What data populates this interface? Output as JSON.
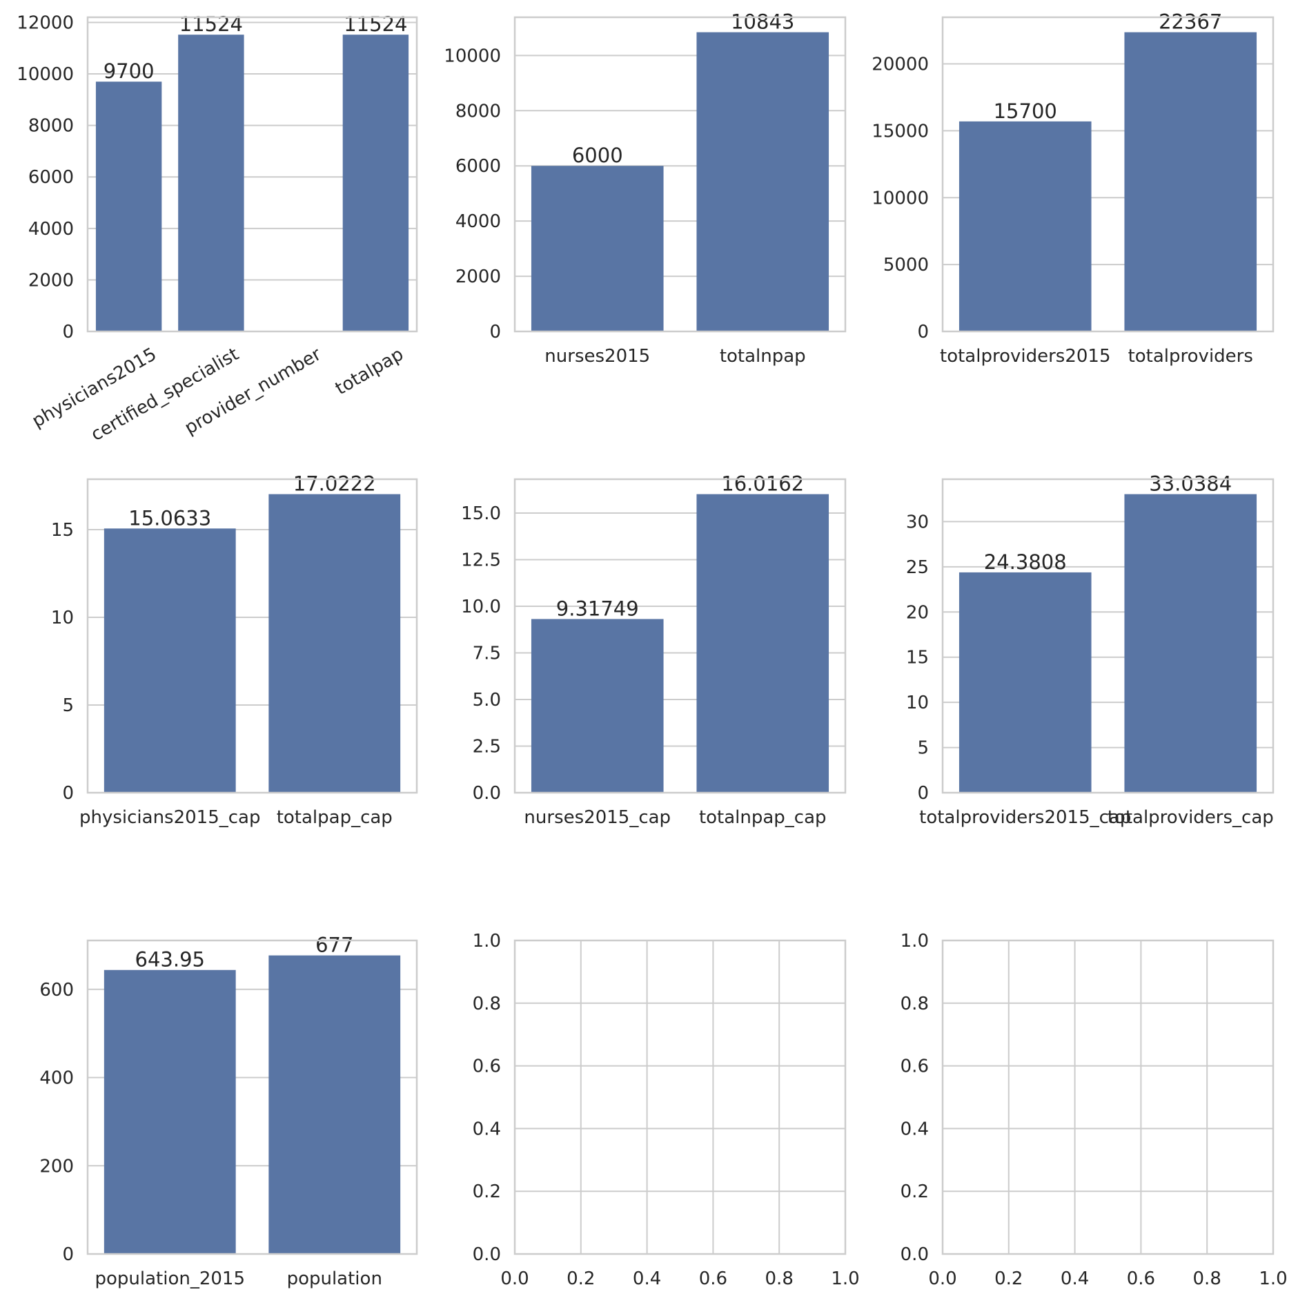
{
  "bar_color": "#5975a4",
  "grid_color": "#cccccc",
  "chart_data": [
    {
      "type": "bar",
      "categories": [
        "physicians2015",
        "certified_specialist",
        "provider_number",
        "totalpap"
      ],
      "values": [
        9700,
        11524,
        null,
        11524
      ],
      "bar_labels": [
        "9700",
        "11524",
        "",
        "11524"
      ],
      "ylim": [
        0,
        12200
      ],
      "yticks": [
        0,
        2000,
        4000,
        6000,
        8000,
        10000,
        12000
      ],
      "ytick_labels": [
        "0",
        "2000",
        "4000",
        "6000",
        "8000",
        "10000",
        "12000"
      ],
      "x_tick_rotation": 30,
      "grid": true
    },
    {
      "type": "bar",
      "categories": [
        "nurses2015",
        "totalnpap"
      ],
      "values": [
        6000,
        10843
      ],
      "bar_labels": [
        "6000",
        "10843"
      ],
      "ylim": [
        0,
        11385
      ],
      "yticks": [
        0,
        2000,
        4000,
        6000,
        8000,
        10000
      ],
      "ytick_labels": [
        "0",
        "2000",
        "4000",
        "6000",
        "8000",
        "10000"
      ],
      "grid": true
    },
    {
      "type": "bar",
      "categories": [
        "totalproviders2015",
        "totalproviders"
      ],
      "values": [
        15700,
        22367
      ],
      "bar_labels": [
        "15700",
        "22367"
      ],
      "ylim": [
        0,
        23485
      ],
      "yticks": [
        0,
        5000,
        10000,
        15000,
        20000
      ],
      "ytick_labels": [
        "0",
        "5000",
        "10000",
        "15000",
        "20000"
      ],
      "grid": true
    },
    {
      "type": "bar",
      "categories": [
        "physicians2015_cap",
        "totalpap_cap"
      ],
      "values": [
        15.0633,
        17.0222
      ],
      "bar_labels": [
        "15.0633",
        "17.0222"
      ],
      "ylim": [
        0,
        17.873
      ],
      "yticks": [
        0,
        5,
        10,
        15
      ],
      "ytick_labels": [
        "0",
        "5",
        "10",
        "15"
      ],
      "grid": true
    },
    {
      "type": "bar",
      "categories": [
        "nurses2015_cap",
        "totalnpap_cap"
      ],
      "values": [
        9.31749,
        16.0162
      ],
      "bar_labels": [
        "9.31749",
        "16.0162"
      ],
      "ylim": [
        0,
        16.817
      ],
      "yticks": [
        0,
        2.5,
        5,
        7.5,
        10,
        12.5,
        15
      ],
      "ytick_labels": [
        "0.0",
        "2.5",
        "5.0",
        "7.5",
        "10.0",
        "12.5",
        "15.0"
      ],
      "grid": true
    },
    {
      "type": "bar",
      "categories": [
        "totalproviders2015_cap",
        "totalproviders_cap"
      ],
      "values": [
        24.3808,
        33.0384
      ],
      "bar_labels": [
        "24.3808",
        "33.0384"
      ],
      "ylim": [
        0,
        34.69
      ],
      "yticks": [
        0,
        5,
        10,
        15,
        20,
        25,
        30
      ],
      "ytick_labels": [
        "0",
        "5",
        "10",
        "15",
        "20",
        "25",
        "30"
      ],
      "grid": true
    },
    {
      "type": "bar",
      "categories": [
        "population_2015",
        "population"
      ],
      "values": [
        643.95,
        677
      ],
      "bar_labels": [
        "643.95",
        "677"
      ],
      "ylim": [
        0,
        710.85
      ],
      "yticks": [
        0,
        200,
        400,
        600
      ],
      "ytick_labels": [
        "0",
        "200",
        "400",
        "600"
      ],
      "grid": true
    },
    {
      "type": "scatter",
      "empty": true,
      "xlim": [
        0,
        1
      ],
      "ylim": [
        0,
        1
      ],
      "xticks": [
        0,
        0.2,
        0.4,
        0.6,
        0.8,
        1.0
      ],
      "xtick_labels": [
        "0.0",
        "0.2",
        "0.4",
        "0.6",
        "0.8",
        "1.0"
      ],
      "yticks": [
        0,
        0.2,
        0.4,
        0.6,
        0.8,
        1.0
      ],
      "ytick_labels": [
        "0.0",
        "0.2",
        "0.4",
        "0.6",
        "0.8",
        "1.0"
      ],
      "grid": true
    },
    {
      "type": "scatter",
      "empty": true,
      "xlim": [
        0,
        1
      ],
      "ylim": [
        0,
        1
      ],
      "xticks": [
        0,
        0.2,
        0.4,
        0.6,
        0.8,
        1.0
      ],
      "xtick_labels": [
        "0.0",
        "0.2",
        "0.4",
        "0.6",
        "0.8",
        "1.0"
      ],
      "yticks": [
        0,
        0.2,
        0.4,
        0.6,
        0.8,
        1.0
      ],
      "ytick_labels": [
        "0.0",
        "0.2",
        "0.4",
        "0.6",
        "0.8",
        "1.0"
      ],
      "grid": true
    }
  ]
}
